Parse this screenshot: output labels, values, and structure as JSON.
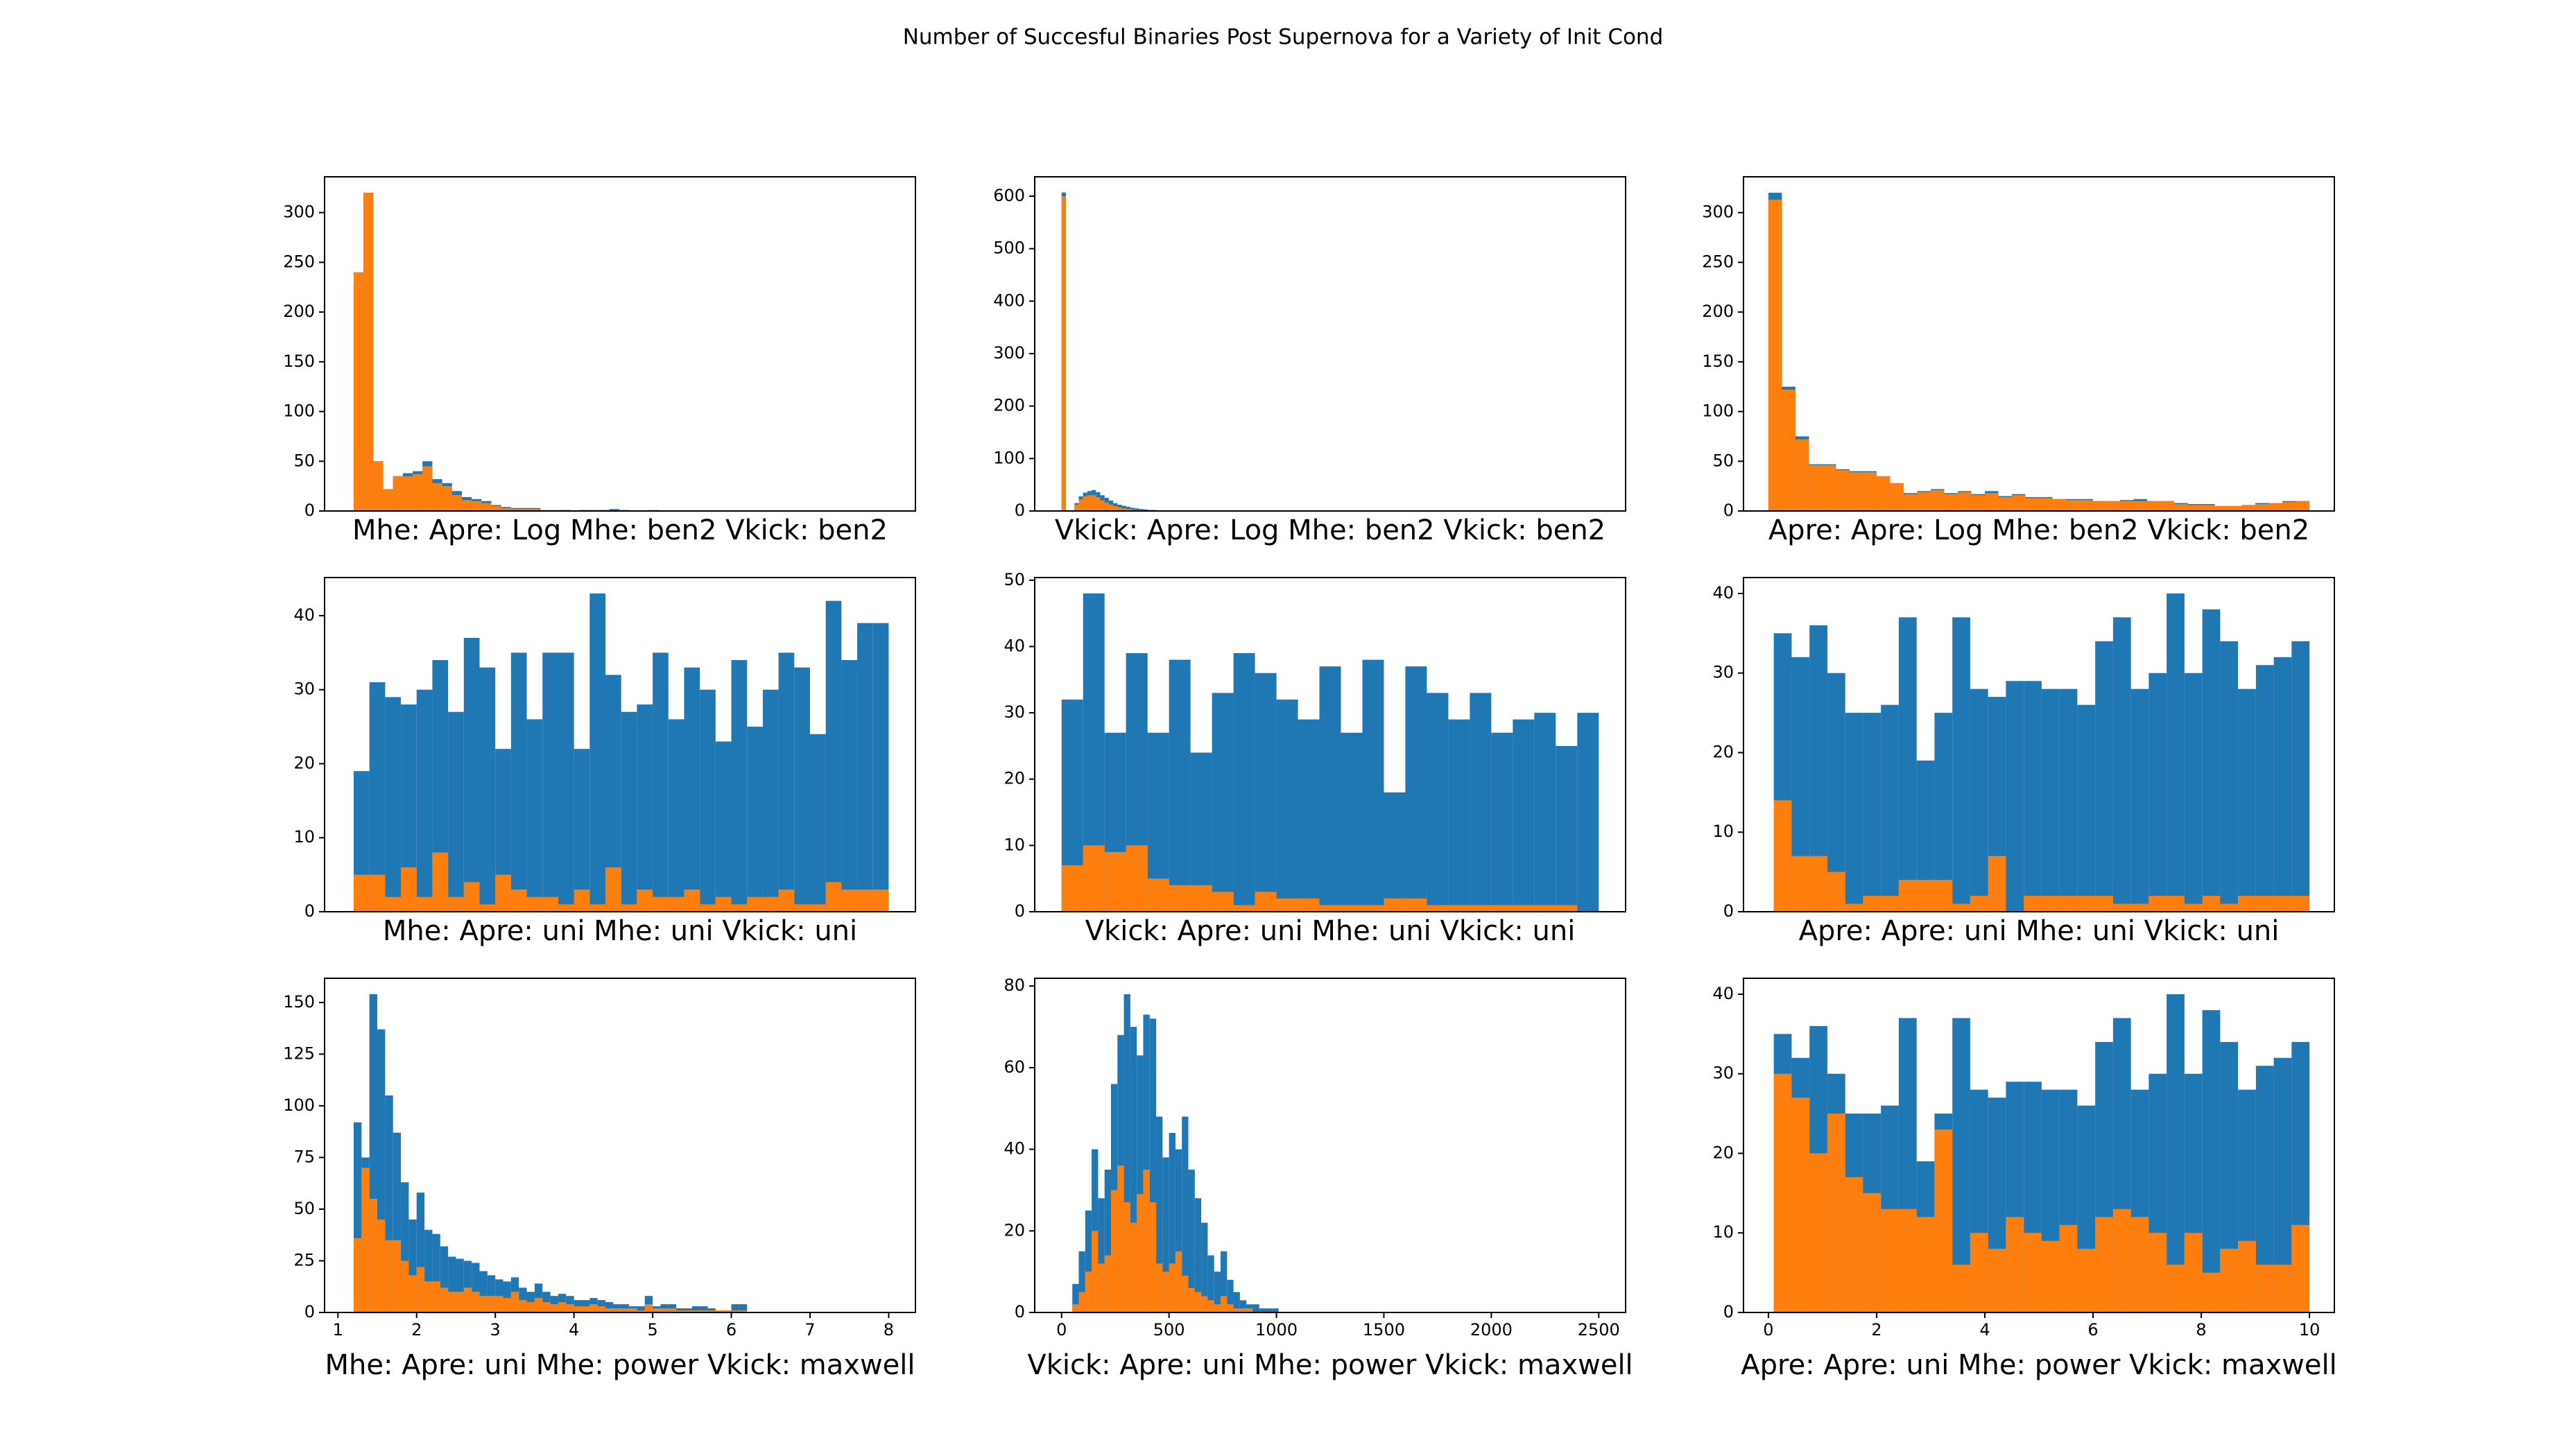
{
  "title": "Number of Succesful Binaries Post Supernova for a Variety of Init Cond",
  "chart_data": [
    {
      "type": "histogram",
      "xlabel": "Mhe: Apre: Log Mhe: ben2 Vkick: ben2",
      "xlim": [
        0.83,
        8.34
      ],
      "ylim": [
        0,
        336
      ],
      "yticks": [
        0,
        50,
        100,
        150,
        200,
        250,
        300
      ],
      "bins": [
        1.2,
        1.325,
        1.45,
        1.575,
        1.7,
        1.825,
        1.95,
        2.075,
        2.2,
        2.325,
        2.45,
        2.575,
        2.7,
        2.825,
        2.95,
        3.075,
        3.2,
        3.325,
        3.45,
        3.575,
        3.7,
        3.825,
        3.95,
        4.075,
        4.2,
        4.325,
        4.45,
        4.575,
        4.7,
        4.825,
        4.95,
        5.075,
        5.2,
        5.325,
        5.45,
        5.575,
        5.7,
        5.825,
        5.95,
        6.075,
        6.2
      ],
      "series": [
        {
          "color": "#1f77b4",
          "values": [
            240,
            320,
            50,
            22,
            35,
            38,
            40,
            50,
            32,
            28,
            20,
            14,
            12,
            10,
            6,
            4,
            3,
            3,
            3,
            1,
            1,
            1,
            0,
            1,
            1,
            1,
            2,
            1,
            0,
            0,
            1,
            0,
            0,
            0,
            0,
            0,
            0,
            0,
            0,
            0
          ]
        },
        {
          "color": "#ff7f0e",
          "values": [
            240,
            320,
            50,
            22,
            35,
            35,
            37,
            45,
            28,
            25,
            16,
            11,
            10,
            8,
            5,
            3,
            2,
            2,
            2,
            1,
            1,
            0,
            0,
            0,
            1,
            0,
            1,
            0,
            0,
            0,
            1,
            0,
            0,
            0,
            0,
            0,
            0,
            0,
            0,
            0
          ]
        }
      ]
    },
    {
      "type": "histogram",
      "xlabel": "Vkick: Apre: Log Mhe: ben2 Vkick: ben2",
      "xlim": [
        -125,
        2625
      ],
      "ylim": [
        0,
        637
      ],
      "yticks": [
        0,
        100,
        200,
        300,
        400,
        500,
        600
      ],
      "bins": [
        0,
        20,
        40,
        60,
        80,
        100,
        120,
        140,
        160,
        180,
        200,
        220,
        240,
        260,
        280,
        300,
        320,
        340,
        360,
        380,
        400,
        420,
        440,
        460,
        480,
        500,
        520,
        540,
        560,
        580,
        600
      ],
      "series": [
        {
          "color": "#1f77b4",
          "values": [
            607,
            0,
            0,
            15,
            28,
            35,
            38,
            40,
            36,
            30,
            25,
            20,
            15,
            12,
            10,
            8,
            6,
            5,
            4,
            3,
            2,
            2,
            1,
            1,
            1,
            0,
            0,
            0,
            0,
            1
          ]
        },
        {
          "color": "#ff7f0e",
          "values": [
            600,
            0,
            0,
            12,
            22,
            28,
            30,
            30,
            26,
            20,
            16,
            12,
            9,
            7,
            5,
            4,
            3,
            2,
            2,
            1,
            1,
            1,
            0,
            0,
            0,
            0,
            0,
            0,
            0,
            0
          ]
        }
      ]
    },
    {
      "type": "histogram",
      "xlabel": "Apre: Apre: Log Mhe: ben2 Vkick: ben2",
      "xlim": [
        -0.46,
        10.46
      ],
      "ylim": [
        0,
        336
      ],
      "yticks": [
        0,
        50,
        100,
        150,
        200,
        250,
        300
      ],
      "bins": [
        0,
        0.25,
        0.5,
        0.75,
        1,
        1.25,
        1.5,
        1.75,
        2,
        2.25,
        2.5,
        2.75,
        3,
        3.25,
        3.5,
        3.75,
        4,
        4.25,
        4.5,
        4.75,
        5,
        5.25,
        5.5,
        5.75,
        6,
        6.25,
        6.5,
        6.75,
        7,
        7.25,
        7.5,
        7.75,
        8,
        8.25,
        8.5,
        8.75,
        9,
        9.25,
        9.5,
        9.75,
        10
      ],
      "series": [
        {
          "color": "#1f77b4",
          "values": [
            320,
            125,
            75,
            47,
            47,
            42,
            40,
            40,
            35,
            28,
            18,
            20,
            22,
            18,
            20,
            17,
            20,
            15,
            17,
            14,
            14,
            12,
            12,
            12,
            10,
            10,
            11,
            12,
            10,
            10,
            8,
            7,
            7,
            5,
            5,
            6,
            8,
            8,
            10,
            10
          ]
        },
        {
          "color": "#ff7f0e",
          "values": [
            313,
            122,
            72,
            46,
            46,
            41,
            39,
            39,
            35,
            28,
            17,
            19,
            21,
            17,
            19,
            16,
            18,
            14,
            16,
            13,
            13,
            12,
            11,
            11,
            10,
            10,
            10,
            10,
            10,
            10,
            7,
            6,
            6,
            5,
            5,
            6,
            7,
            8,
            9,
            10
          ]
        }
      ]
    },
    {
      "type": "histogram",
      "xlabel": "Mhe: Apre: uni Mhe: uni Vkick: uni",
      "xlim": [
        0.83,
        8.34
      ],
      "ylim": [
        0,
        45.15
      ],
      "yticks": [
        0,
        10,
        20,
        30,
        40
      ],
      "bins": [
        1.2,
        1.4,
        1.6,
        1.8,
        2,
        2.2,
        2.4,
        2.6,
        2.8,
        3,
        3.2,
        3.4,
        3.6,
        3.8,
        4,
        4.2,
        4.4,
        4.6,
        4.8,
        5,
        5.2,
        5.4,
        5.6,
        5.8,
        6,
        6.2,
        6.4,
        6.6,
        6.8,
        7,
        7.2,
        7.4,
        7.6,
        7.8,
        8
      ],
      "series": [
        {
          "color": "#1f77b4",
          "values": [
            19,
            31,
            29,
            28,
            30,
            34,
            27,
            37,
            33,
            22,
            35,
            26,
            35,
            35,
            22,
            43,
            32,
            27,
            28,
            35,
            26,
            33,
            30,
            23,
            34,
            25,
            30,
            35,
            33,
            24,
            42,
            34,
            39,
            39
          ]
        },
        {
          "color": "#ff7f0e",
          "values": [
            5,
            5,
            2,
            6,
            2,
            8,
            2,
            4,
            1,
            5,
            3,
            2,
            2,
            1,
            3,
            1,
            6,
            1,
            3,
            2,
            2,
            3,
            1,
            2,
            1,
            2,
            2,
            3,
            1,
            1,
            4,
            3,
            3,
            3
          ]
        }
      ]
    },
    {
      "type": "histogram",
      "xlabel": "Vkick: Apre: uni Mhe: uni Vkick: uni",
      "xlim": [
        -125,
        2625
      ],
      "ylim": [
        0,
        50.4
      ],
      "yticks": [
        0,
        10,
        20,
        30,
        40,
        50
      ],
      "bins": [
        0,
        100,
        200,
        300,
        400,
        500,
        600,
        700,
        800,
        900,
        1000,
        1100,
        1200,
        1300,
        1400,
        1500,
        1600,
        1700,
        1800,
        1900,
        2000,
        2100,
        2200,
        2300,
        2400,
        2500
      ],
      "series": [
        {
          "color": "#1f77b4",
          "values": [
            32,
            48,
            27,
            39,
            27,
            38,
            24,
            33,
            39,
            36,
            32,
            29,
            37,
            27,
            38,
            18,
            37,
            33,
            29,
            33,
            27,
            29,
            30,
            25,
            30
          ]
        },
        {
          "color": "#ff7f0e",
          "values": [
            7,
            10,
            9,
            10,
            5,
            4,
            4,
            3,
            1,
            3,
            2,
            2,
            1,
            1,
            1,
            2,
            2,
            1,
            1,
            1,
            1,
            1,
            1,
            1,
            0
          ]
        }
      ]
    },
    {
      "type": "histogram",
      "xlabel": "Apre: Apre: uni Mhe: uni Vkick: uni",
      "xlim": [
        -0.46,
        10.46
      ],
      "ylim": [
        0,
        42
      ],
      "yticks": [
        0,
        10,
        20,
        30,
        40
      ],
      "bins": [
        0.1,
        0.43,
        0.76,
        1.09,
        1.42,
        1.75,
        2.08,
        2.41,
        2.74,
        3.07,
        3.4,
        3.73,
        4.06,
        4.39,
        4.72,
        5.05,
        5.38,
        5.71,
        6.04,
        6.37,
        6.7,
        7.03,
        7.36,
        7.69,
        8.02,
        8.35,
        8.68,
        9.01,
        9.34,
        9.67,
        10
      ],
      "series": [
        {
          "color": "#1f77b4",
          "values": [
            35,
            32,
            36,
            30,
            25,
            25,
            26,
            37,
            19,
            25,
            37,
            28,
            27,
            29,
            29,
            28,
            28,
            26,
            34,
            37,
            28,
            30,
            40,
            30,
            38,
            34,
            28,
            31,
            32,
            34
          ]
        },
        {
          "color": "#ff7f0e",
          "values": [
            14,
            7,
            7,
            5,
            1,
            2,
            2,
            4,
            4,
            4,
            1,
            2,
            7,
            0,
            2,
            2,
            2,
            2,
            2,
            1,
            1,
            2,
            2,
            1,
            2,
            1,
            2,
            2,
            2,
            2
          ]
        }
      ]
    },
    {
      "type": "histogram",
      "xlabel": "Mhe: Apre: uni Mhe: power Vkick: maxwell",
      "xlim": [
        0.83,
        8.34
      ],
      "ylim": [
        0,
        161.7
      ],
      "yticks": [
        0,
        25,
        50,
        75,
        100,
        125,
        150
      ],
      "xticks": [
        1,
        2,
        3,
        4,
        5,
        6,
        7,
        8
      ],
      "bins": [
        1.2,
        1.3,
        1.4,
        1.5,
        1.6,
        1.7,
        1.8,
        1.9,
        2,
        2.1,
        2.2,
        2.3,
        2.4,
        2.5,
        2.6,
        2.7,
        2.8,
        2.9,
        3,
        3.1,
        3.2,
        3.3,
        3.4,
        3.5,
        3.6,
        3.7,
        3.8,
        3.9,
        4,
        4.1,
        4.2,
        4.3,
        4.4,
        4.5,
        4.6,
        4.7,
        4.8,
        4.9,
        5,
        5.1,
        5.2,
        5.3,
        5.4,
        5.5,
        5.6,
        5.7,
        5.8,
        5.9,
        6,
        6.1,
        6.2
      ],
      "series": [
        {
          "color": "#1f77b4",
          "values": [
            92,
            75,
            154,
            137,
            105,
            87,
            63,
            45,
            58,
            40,
            38,
            32,
            27,
            26,
            25,
            24,
            20,
            18,
            16,
            15,
            17,
            12,
            10,
            14,
            10,
            8,
            9,
            8,
            6,
            6,
            7,
            6,
            5,
            4,
            4,
            3,
            3,
            8,
            3,
            4,
            4,
            2,
            2,
            3,
            3,
            2,
            1,
            1,
            4,
            4
          ]
        },
        {
          "color": "#ff7f0e",
          "values": [
            36,
            70,
            55,
            45,
            35,
            35,
            25,
            18,
            22,
            15,
            15,
            12,
            10,
            10,
            12,
            10,
            8,
            8,
            8,
            7,
            10,
            6,
            5,
            7,
            5,
            4,
            5,
            4,
            3,
            3,
            4,
            3,
            2,
            2,
            2,
            2,
            1,
            4,
            2,
            2,
            2,
            1,
            1,
            1,
            1,
            1,
            1,
            1,
            1,
            1
          ]
        }
      ]
    },
    {
      "type": "histogram",
      "xlabel": "Vkick: Apre: uni Mhe: power Vkick: maxwell",
      "xlim": [
        -125,
        2625
      ],
      "ylim": [
        0,
        81.9
      ],
      "yticks": [
        0,
        20,
        40,
        60,
        80
      ],
      "xticks": [
        0,
        500,
        1000,
        1500,
        2000,
        2500
      ],
      "bins": [
        50,
        80,
        110,
        140,
        170,
        200,
        230,
        260,
        290,
        320,
        350,
        380,
        410,
        440,
        470,
        500,
        530,
        560,
        590,
        620,
        650,
        680,
        710,
        740,
        770,
        800,
        830,
        860,
        890,
        920,
        950,
        980,
        1010
      ],
      "series": [
        {
          "color": "#1f77b4",
          "values": [
            7,
            15,
            25,
            40,
            28,
            35,
            56,
            68,
            78,
            70,
            63,
            73,
            72,
            48,
            38,
            44,
            40,
            48,
            35,
            28,
            22,
            14,
            10,
            15,
            8,
            5,
            3,
            2,
            2,
            1,
            1,
            1
          ]
        },
        {
          "color": "#ff7f0e",
          "values": [
            2,
            5,
            10,
            20,
            12,
            14,
            30,
            36,
            27,
            22,
            29,
            35,
            27,
            12,
            10,
            12,
            15,
            9,
            6,
            5,
            4,
            3,
            2,
            4,
            2,
            1,
            1,
            1,
            0,
            0,
            0,
            0
          ]
        }
      ]
    },
    {
      "type": "histogram",
      "xlabel": "Apre: Apre: uni Mhe: power Vkick: maxwell",
      "xlim": [
        -0.46,
        10.46
      ],
      "ylim": [
        0,
        42
      ],
      "yticks": [
        0,
        10,
        20,
        30,
        40
      ],
      "xticks": [
        0,
        2,
        4,
        6,
        8,
        10
      ],
      "bins": [
        0.1,
        0.43,
        0.76,
        1.09,
        1.42,
        1.75,
        2.08,
        2.41,
        2.74,
        3.07,
        3.4,
        3.73,
        4.06,
        4.39,
        4.72,
        5.05,
        5.38,
        5.71,
        6.04,
        6.37,
        6.7,
        7.03,
        7.36,
        7.69,
        8.02,
        8.35,
        8.68,
        9.01,
        9.34,
        9.67,
        10
      ],
      "series": [
        {
          "color": "#1f77b4",
          "values": [
            35,
            32,
            36,
            30,
            25,
            25,
            26,
            37,
            19,
            25,
            37,
            28,
            27,
            29,
            29,
            28,
            28,
            26,
            34,
            37,
            28,
            30,
            40,
            30,
            38,
            34,
            28,
            31,
            32,
            34
          ]
        },
        {
          "color": "#ff7f0e",
          "values": [
            30,
            27,
            20,
            25,
            17,
            15,
            13,
            13,
            12,
            23,
            6,
            10,
            8,
            12,
            10,
            9,
            11,
            8,
            12,
            13,
            12,
            10,
            6,
            10,
            5,
            8,
            9,
            6,
            6,
            11
          ]
        }
      ]
    }
  ]
}
